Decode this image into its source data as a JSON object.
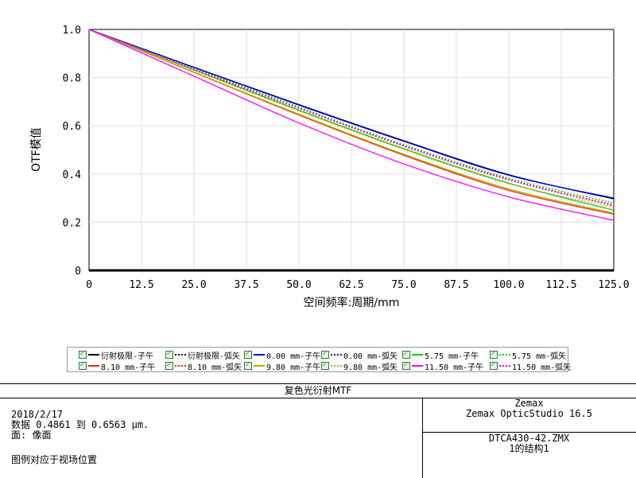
{
  "chart_data": {
    "type": "line",
    "xlabel": "空间频率:周期/mm",
    "ylabel": "OTF模值",
    "xlim": [
      0,
      125
    ],
    "ylim": [
      0,
      1
    ],
    "x_ticks": [
      "0",
      "12.5",
      "25.0",
      "37.5",
      "50.0",
      "62.5",
      "75.0",
      "87.5",
      "100.0",
      "112.5",
      "125.0"
    ],
    "y_ticks": [
      "0",
      "0.2",
      "0.4",
      "0.6",
      "0.8",
      "1.0"
    ],
    "grid": true,
    "legend_placement": "bottom",
    "series": [
      {
        "name": "衍射极限-子午",
        "color": "#000000",
        "dash": "solid",
        "x": [
          0,
          25,
          50,
          75,
          100,
          125
        ],
        "y": [
          1.0,
          0.843,
          0.688,
          0.538,
          0.397,
          0.297
        ]
      },
      {
        "name": "衍射极限-弧矢",
        "color": "#000000",
        "dash": "dotted",
        "x": [
          0,
          25,
          50,
          75,
          100,
          125
        ],
        "y": [
          1.0,
          0.843,
          0.688,
          0.538,
          0.397,
          0.297
        ]
      },
      {
        "name": "0.00 mm-子午",
        "color": "#0000ff",
        "dash": "solid",
        "x": [
          0,
          25,
          50,
          75,
          100,
          125
        ],
        "y": [
          1.0,
          0.842,
          0.686,
          0.536,
          0.395,
          0.3
        ]
      },
      {
        "name": "0.00 mm-弧矢",
        "color": "#0000ff",
        "dash": "dotted",
        "x": [
          0,
          25,
          50,
          75,
          100,
          125
        ],
        "y": [
          1.0,
          0.842,
          0.686,
          0.536,
          0.395,
          0.3
        ]
      },
      {
        "name": "5.75 mm-子午",
        "color": "#00cc00",
        "dash": "solid",
        "x": [
          0,
          25,
          50,
          75,
          100,
          125
        ],
        "y": [
          1.0,
          0.832,
          0.665,
          0.505,
          0.362,
          0.25
        ]
      },
      {
        "name": "5.75 mm-弧矢",
        "color": "#00cc00",
        "dash": "dotted",
        "x": [
          0,
          25,
          50,
          75,
          100,
          125
        ],
        "y": [
          1.0,
          0.838,
          0.678,
          0.522,
          0.383,
          0.28
        ]
      },
      {
        "name": "8.10 mm-子午",
        "color": "#e03000",
        "dash": "solid",
        "x": [
          0,
          25,
          50,
          75,
          100,
          125
        ],
        "y": [
          1.0,
          0.822,
          0.645,
          0.478,
          0.332,
          0.233
        ]
      },
      {
        "name": "8.10 mm-弧矢",
        "color": "#e03000",
        "dash": "dotted",
        "x": [
          0,
          25,
          50,
          75,
          100,
          125
        ],
        "y": [
          1.0,
          0.836,
          0.674,
          0.518,
          0.378,
          0.272
        ]
      },
      {
        "name": "9.80 mm-子午",
        "color": "#c8a000",
        "dash": "solid",
        "x": [
          0,
          25,
          50,
          75,
          100,
          125
        ],
        "y": [
          1.0,
          0.823,
          0.648,
          0.482,
          0.338,
          0.238
        ]
      },
      {
        "name": "9.80 mm-弧矢",
        "color": "#c8a000",
        "dash": "dotted",
        "x": [
          0,
          25,
          50,
          75,
          100,
          125
        ],
        "y": [
          1.0,
          0.83,
          0.662,
          0.502,
          0.36,
          0.262
        ]
      },
      {
        "name": "11.50 mm-子午",
        "color": "#ff00ff",
        "dash": "solid",
        "x": [
          0,
          25,
          50,
          75,
          100,
          125
        ],
        "y": [
          1.0,
          0.806,
          0.612,
          0.442,
          0.305,
          0.208
        ]
      },
      {
        "name": "11.50 mm-弧矢",
        "color": "#ff00ff",
        "dash": "dotted",
        "x": [
          0,
          25,
          50,
          75,
          100,
          125
        ],
        "y": [
          1.0,
          0.835,
          0.672,
          0.515,
          0.375,
          0.268
        ]
      }
    ]
  },
  "footer": {
    "title": "复色光衍射MTF",
    "date": "2018/2/17",
    "data_range": "数据 0.4861 到 0.6563 µm.",
    "surface": "面: 像面",
    "legend_note": "图例对应于视场位置",
    "vendor": "Zemax",
    "software": "Zemax OpticStudio 16.5",
    "filename": "DTCA430-42.ZMX",
    "config": "1的结构1"
  }
}
